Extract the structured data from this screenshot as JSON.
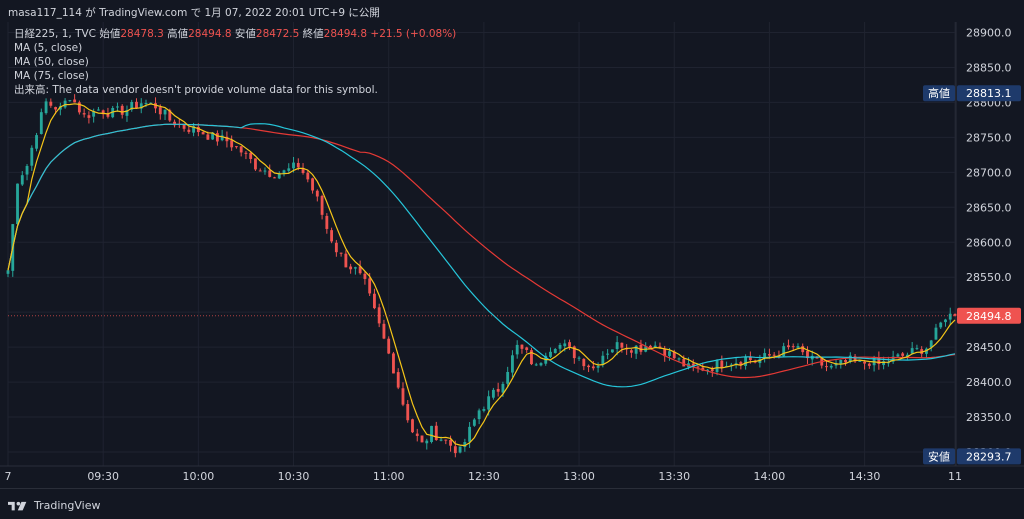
{
  "header": {
    "publish_line": "masa117_114 が TradingView.com で 1月 07, 2022 20:01 UTC+9 に公開"
  },
  "legend": {
    "symbol": "日経225, 1, TVC",
    "open_label": "始値",
    "open_value": "28478.3",
    "high_label": "高値",
    "high_value": "28494.8",
    "low_label": "安値",
    "low_value": "28472.5",
    "close_label": "終値",
    "close_value": "28494.8",
    "change": "+21.5 (+0.08%)",
    "ma_lines": [
      "MA (5, close)",
      "MA (50, close)",
      "MA (75, close)"
    ],
    "volume_note": "出来高: The data vendor doesn't provide volume data for this symbol."
  },
  "footer": {
    "brand": "TradingView"
  },
  "colors": {
    "background": "#131722",
    "grid": "#1f2330",
    "up": "#26a69a",
    "down": "#ef5350",
    "ma5": "#f5c518",
    "ma50": "#26c6da",
    "ma75": "#e53935",
    "label_bg": "#1e3a6b",
    "last_price_bg": "#ef5350"
  },
  "chart_data": {
    "type": "candlestick",
    "timeframe": "1 minute",
    "x_ticks": [
      "7",
      "09:30",
      "10:00",
      "10:30",
      "11:00",
      "12:30",
      "13:00",
      "13:30",
      "14:00",
      "14:30",
      "11"
    ],
    "y_ticks": [
      28300.0,
      28350.0,
      28400.0,
      28450.0,
      28500.0,
      28550.0,
      28600.0,
      28650.0,
      28700.0,
      28750.0,
      28800.0,
      28850.0,
      28900.0
    ],
    "ylim": [
      28280,
      28915
    ],
    "high_label": "高値",
    "high_value": 28813.1,
    "low_label": "安値",
    "low_value": 28293.7,
    "last_price": 28494.8,
    "price_path": [
      [
        0,
        28560
      ],
      [
        2,
        28690
      ],
      [
        4,
        28710
      ],
      [
        6,
        28760
      ],
      [
        8,
        28800
      ],
      [
        11,
        28790
      ],
      [
        13,
        28810
      ],
      [
        16,
        28780
      ],
      [
        19,
        28790
      ],
      [
        22,
        28785
      ],
      [
        25,
        28790
      ],
      [
        28,
        28800
      ],
      [
        31,
        28795
      ],
      [
        34,
        28775
      ],
      [
        37,
        28765
      ],
      [
        40,
        28760
      ],
      [
        43,
        28750
      ],
      [
        46,
        28745
      ],
      [
        49,
        28730
      ],
      [
        52,
        28710
      ],
      [
        55,
        28700
      ],
      [
        58,
        28700
      ],
      [
        61,
        28710
      ],
      [
        63,
        28690
      ],
      [
        65,
        28660
      ],
      [
        67,
        28620
      ],
      [
        69,
        28590
      ],
      [
        71,
        28570
      ],
      [
        73,
        28560
      ],
      [
        75,
        28540
      ],
      [
        77,
        28500
      ],
      [
        79,
        28460
      ],
      [
        81,
        28420
      ],
      [
        83,
        28370
      ],
      [
        85,
        28330
      ],
      [
        87,
        28310
      ],
      [
        89,
        28330
      ],
      [
        91,
        28320
      ],
      [
        93,
        28310
      ],
      [
        95,
        28300
      ],
      [
        97,
        28330
      ],
      [
        99,
        28360
      ],
      [
        101,
        28375
      ],
      [
        103,
        28390
      ],
      [
        105,
        28420
      ],
      [
        107,
        28450
      ],
      [
        109,
        28440
      ],
      [
        111,
        28420
      ],
      [
        113,
        28445
      ],
      [
        115,
        28455
      ],
      [
        117,
        28450
      ],
      [
        119,
        28440
      ],
      [
        121,
        28430
      ],
      [
        123,
        28420
      ],
      [
        125,
        28440
      ],
      [
        127,
        28450
      ],
      [
        129,
        28455
      ],
      [
        131,
        28450
      ],
      [
        133,
        28450
      ],
      [
        135,
        28455
      ],
      [
        137,
        28450
      ],
      [
        139,
        28440
      ],
      [
        141,
        28430
      ],
      [
        143,
        28420
      ],
      [
        145,
        28420
      ],
      [
        147,
        28420
      ],
      [
        149,
        28425
      ],
      [
        151,
        28430
      ],
      [
        153,
        28430
      ],
      [
        155,
        28435
      ],
      [
        157,
        28430
      ],
      [
        159,
        28435
      ],
      [
        161,
        28440
      ],
      [
        163,
        28445
      ],
      [
        165,
        28450
      ],
      [
        167,
        28440
      ],
      [
        169,
        28430
      ],
      [
        171,
        28425
      ],
      [
        173,
        28420
      ],
      [
        175,
        28425
      ],
      [
        177,
        28430
      ],
      [
        179,
        28425
      ],
      [
        181,
        28430
      ],
      [
        183,
        28425
      ],
      [
        185,
        28430
      ],
      [
        187,
        28435
      ],
      [
        189,
        28440
      ],
      [
        191,
        28445
      ],
      [
        193,
        28450
      ],
      [
        195,
        28470
      ],
      [
        197,
        28495
      ]
    ]
  }
}
